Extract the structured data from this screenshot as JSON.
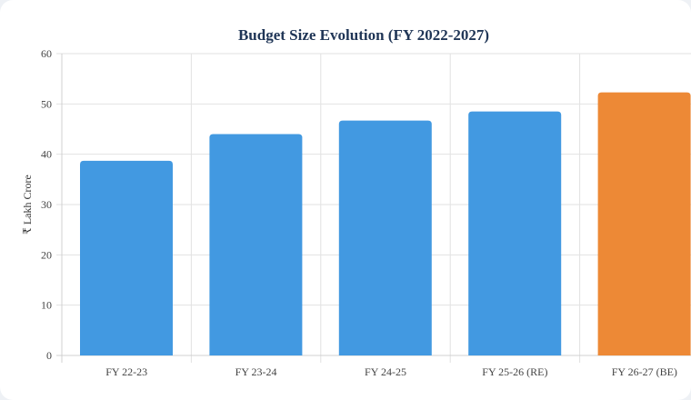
{
  "chart_data": {
    "type": "bar",
    "title": "Budget Size Evolution (FY 2022-2027)",
    "xlabel": "",
    "ylabel": "₹ Lakh Crore",
    "ylim": [
      0,
      60
    ],
    "yticks": [
      0,
      10,
      20,
      30,
      40,
      50,
      60
    ],
    "grid": true,
    "categories": [
      "FY 22-23",
      "FY 23-24",
      "FY 24-25",
      "FY 25-26 (RE)",
      "FY 26-27 (BE)"
    ],
    "values": [
      38.7,
      44.0,
      46.7,
      48.5,
      52.3
    ],
    "colors": [
      "#4299e1",
      "#4299e1",
      "#4299e1",
      "#4299e1",
      "#ed8936"
    ]
  }
}
